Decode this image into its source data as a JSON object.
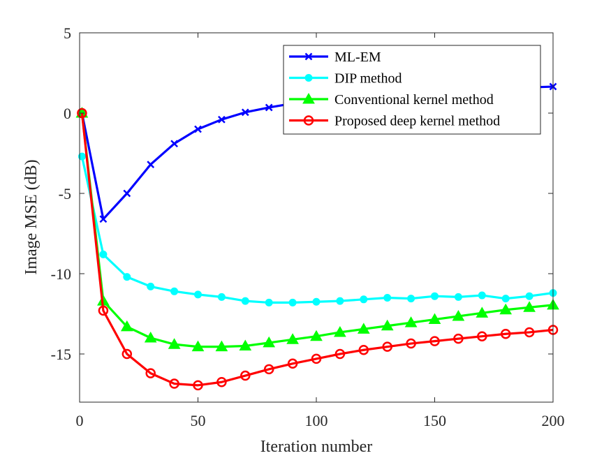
{
  "chart_data": {
    "type": "line",
    "title": "",
    "xlabel": "Iteration number",
    "ylabel": "Image MSE (dB)",
    "xlim": [
      0,
      200
    ],
    "ylim": [
      -18,
      5
    ],
    "xticks": [
      0,
      50,
      100,
      150,
      200
    ],
    "yticks": [
      5,
      0,
      -5,
      -10,
      -15
    ],
    "grid": false,
    "legend_position": "top-right",
    "series": [
      {
        "name": "ML-EM",
        "color": "#0000ff",
        "marker": "x",
        "x": [
          1,
          10,
          20,
          30,
          40,
          50,
          60,
          70,
          80,
          90,
          100,
          110,
          120,
          130,
          140,
          150,
          160,
          170,
          180,
          190,
          200
        ],
        "y": [
          0,
          -6.6,
          -5.0,
          -3.2,
          -1.9,
          -1.0,
          -0.4,
          0.05,
          0.35,
          0.6,
          0.8,
          0.95,
          1.05,
          1.15,
          1.25,
          1.35,
          1.45,
          1.5,
          1.55,
          1.6,
          1.65
        ]
      },
      {
        "name": "DIP method",
        "color": "#00ffff",
        "marker": "circle-filled",
        "x": [
          1,
          10,
          20,
          30,
          40,
          50,
          60,
          70,
          80,
          90,
          100,
          110,
          120,
          130,
          140,
          150,
          160,
          170,
          180,
          190,
          200
        ],
        "y": [
          -2.7,
          -8.8,
          -10.2,
          -10.8,
          -11.1,
          -11.3,
          -11.45,
          -11.7,
          -11.8,
          -11.8,
          -11.75,
          -11.7,
          -11.6,
          -11.5,
          -11.55,
          -11.4,
          -11.45,
          -11.35,
          -11.55,
          -11.4,
          -11.2
        ]
      },
      {
        "name": "Conventional kernel method",
        "color": "#00ff00",
        "marker": "triangle",
        "x": [
          1,
          10,
          20,
          30,
          40,
          50,
          60,
          70,
          80,
          90,
          100,
          110,
          120,
          130,
          140,
          150,
          160,
          170,
          180,
          190,
          200
        ],
        "y": [
          0,
          -11.7,
          -13.3,
          -14.0,
          -14.4,
          -14.55,
          -14.55,
          -14.5,
          -14.3,
          -14.1,
          -13.9,
          -13.65,
          -13.45,
          -13.25,
          -13.05,
          -12.85,
          -12.65,
          -12.45,
          -12.25,
          -12.1,
          -11.95
        ]
      },
      {
        "name": "Proposed deep kernel method",
        "color": "#ff0000",
        "marker": "circle-open",
        "x": [
          1,
          10,
          20,
          30,
          40,
          50,
          60,
          70,
          80,
          90,
          100,
          110,
          120,
          130,
          140,
          150,
          160,
          170,
          180,
          190,
          200
        ],
        "y": [
          0,
          -12.3,
          -15.0,
          -16.2,
          -16.85,
          -16.95,
          -16.75,
          -16.35,
          -15.95,
          -15.6,
          -15.3,
          -15.0,
          -14.75,
          -14.55,
          -14.35,
          -14.2,
          -14.05,
          -13.9,
          -13.75,
          -13.65,
          -13.5
        ]
      }
    ]
  }
}
